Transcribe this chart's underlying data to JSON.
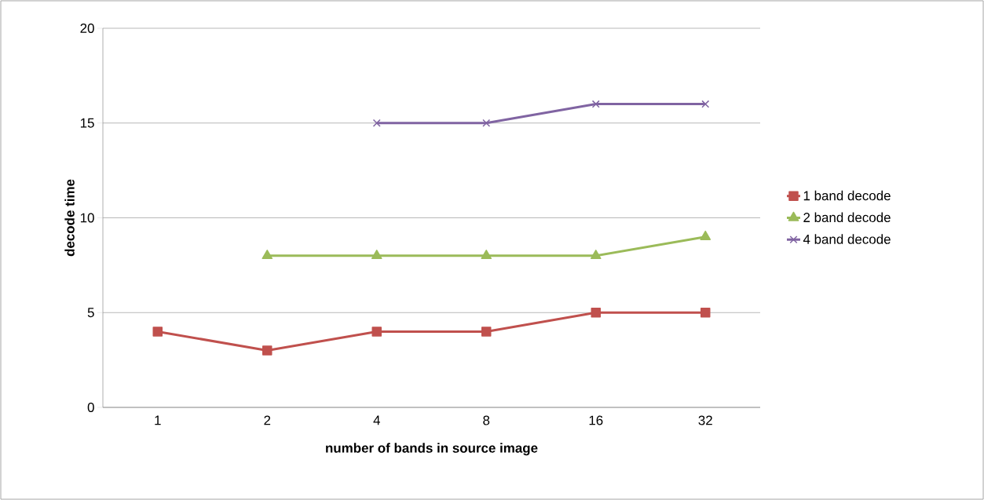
{
  "chart_data": {
    "type": "line",
    "xlabel": "number of bands in source image",
    "ylabel": "decode time",
    "categories": [
      "1",
      "2",
      "4",
      "8",
      "16",
      "32"
    ],
    "series": [
      {
        "name": "1 band decode",
        "color": "#c0504d",
        "marker": "square",
        "values": [
          4,
          3,
          4,
          4,
          5,
          5
        ]
      },
      {
        "name": "2 band decode",
        "color": "#9bbb59",
        "marker": "triangle",
        "values": [
          null,
          8,
          8,
          8,
          8,
          9
        ]
      },
      {
        "name": "4 band decode",
        "color": "#8064a2",
        "marker": "cross",
        "values": [
          null,
          null,
          15,
          15,
          16,
          16
        ]
      }
    ],
    "ylim": [
      0,
      20
    ],
    "yticks": [
      0,
      5,
      10,
      15,
      20
    ],
    "grid": "y",
    "legend": "right",
    "line_style": "solid"
  }
}
